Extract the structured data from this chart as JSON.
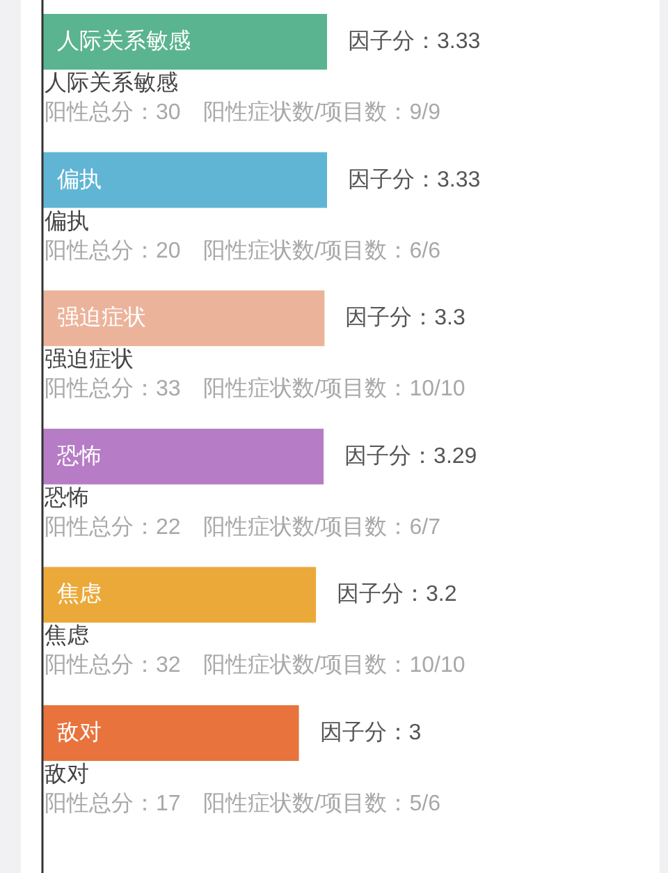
{
  "chart_data": {
    "type": "bar",
    "orientation": "horizontal",
    "categories": [
      "人际关系敏感",
      "偏执",
      "强迫症状",
      "恐怖",
      "焦虑",
      "敌对"
    ],
    "values": [
      3.33,
      3.33,
      3.3,
      3.29,
      3.2,
      3
    ],
    "colors": [
      "#5ab48f",
      "#61b5d4",
      "#ecb39b",
      "#b67cc5",
      "#eba93a",
      "#e8733d"
    ],
    "value_labels": [
      "因子分：3.33",
      "因子分：3.33",
      "因子分：3.3",
      "因子分：3.29",
      "因子分：3.2",
      "因子分：3"
    ],
    "tick_labels": "y",
    "annotations": [
      "人际关系敏感",
      "阳性总分：30　阳性症状数/项目数：9/9",
      "偏执",
      "阳性总分：20　阳性症状数/项目数：6/6",
      "强迫症状",
      "阳性总分：33　阳性症状数/项目数：10/10",
      "恐怖",
      "阳性总分：22　阳性症状数/项目数：6/7",
      "焦虑",
      "阳性总分：32　阳性症状数/项目数：10/10",
      "敌对",
      "阳性总分：17　阳性症状数/项目数：5/6"
    ]
  }
}
